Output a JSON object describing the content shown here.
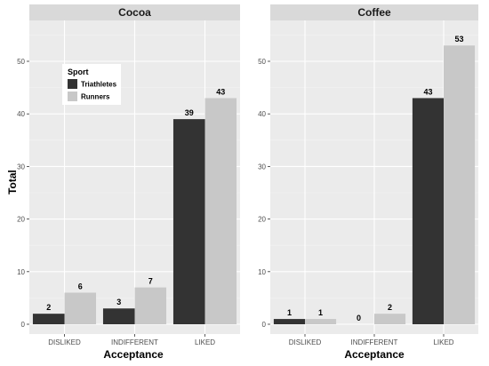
{
  "chart_data": {
    "type": "bar",
    "facets": [
      "Cocoa",
      "Coffee"
    ],
    "categories": [
      "DISLIKED",
      "INDIFFERENT",
      "LIKED"
    ],
    "series": [
      {
        "name": "Triathletes",
        "color": "#333333",
        "values": {
          "Cocoa": [
            2,
            3,
            39
          ],
          "Coffee": [
            1,
            0,
            43
          ]
        }
      },
      {
        "name": "Runners",
        "color": "#c8c8c8",
        "values": {
          "Cocoa": [
            6,
            7,
            43
          ],
          "Coffee": [
            1,
            2,
            53
          ]
        }
      }
    ],
    "xlabel": "Acceptance",
    "ylabel": "Total",
    "ylim": [
      0,
      60
    ],
    "yticks": [
      0,
      10,
      20,
      30,
      40,
      50
    ],
    "legend": {
      "title": "Sport",
      "placement": "inside-top-left-of-first-panel"
    },
    "panel_background": "#ebebeb",
    "strip_background": "#d9d9d9",
    "grid": true
  }
}
